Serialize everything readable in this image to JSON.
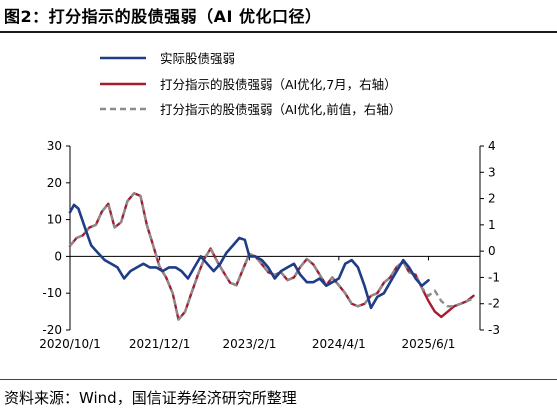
{
  "figure": {
    "title": "图2：打分指示的股债强弱（AI 优化口径）",
    "source": "资料来源：Wind，国信证券经济研究所整理"
  },
  "chart_data": {
    "type": "line",
    "x_tick_labels": [
      "2020/10/1",
      "2021/12/1",
      "2023/2/1",
      "2024/4/1",
      "2025/6/1"
    ],
    "x_range": [
      "2020-10-01",
      "2026-02-01"
    ],
    "left_axis": {
      "ticks": [
        30,
        20,
        10,
        0,
        -10,
        -20
      ],
      "range": [
        -20,
        30
      ]
    },
    "right_axis": {
      "ticks": [
        4,
        3,
        2,
        1,
        0,
        -1,
        -2,
        -3
      ],
      "range": [
        -3,
        4
      ]
    },
    "legend_position": "top",
    "colors": {
      "actual": "#1f3c88",
      "ai_july": "#a51c30",
      "ai_prev": "#8c8c8c"
    },
    "series": [
      {
        "name": "实际股债强弱",
        "axis": "left",
        "color": "#1f3c88",
        "points": [
          [
            "2020-10-01",
            12
          ],
          [
            "2020-10-20",
            14
          ],
          [
            "2020-11-10",
            13
          ],
          [
            "2020-12-10",
            8
          ],
          [
            "2021-01-10",
            3
          ],
          [
            "2021-02-10",
            1
          ],
          [
            "2021-03-15",
            -1
          ],
          [
            "2021-04-15",
            -2
          ],
          [
            "2021-05-15",
            -3
          ],
          [
            "2021-06-15",
            -6
          ],
          [
            "2021-07-15",
            -4
          ],
          [
            "2021-08-15",
            -3
          ],
          [
            "2021-09-15",
            -2
          ],
          [
            "2021-10-15",
            -3
          ],
          [
            "2021-11-15",
            -3
          ],
          [
            "2021-12-15",
            -4
          ],
          [
            "2022-01-15",
            -3
          ],
          [
            "2022-02-15",
            -3
          ],
          [
            "2022-03-15",
            -4
          ],
          [
            "2022-04-15",
            -6
          ],
          [
            "2022-05-15",
            -3
          ],
          [
            "2022-06-15",
            0
          ],
          [
            "2022-07-15",
            -2
          ],
          [
            "2022-08-15",
            -4
          ],
          [
            "2022-09-15",
            -2
          ],
          [
            "2022-10-15",
            1
          ],
          [
            "2022-11-15",
            3
          ],
          [
            "2022-12-15",
            5
          ],
          [
            "2023-01-10",
            4.5
          ],
          [
            "2023-02-01",
            0
          ],
          [
            "2023-03-01",
            0
          ],
          [
            "2023-04-01",
            -1
          ],
          [
            "2023-05-01",
            -3
          ],
          [
            "2023-06-01",
            -6
          ],
          [
            "2023-07-01",
            -4
          ],
          [
            "2023-08-01",
            -3
          ],
          [
            "2023-09-01",
            -2
          ],
          [
            "2023-10-01",
            -5
          ],
          [
            "2023-11-01",
            -7
          ],
          [
            "2023-12-01",
            -7
          ],
          [
            "2024-01-01",
            -6
          ],
          [
            "2024-02-01",
            -8
          ],
          [
            "2024-03-01",
            -7
          ],
          [
            "2024-04-01",
            -6
          ],
          [
            "2024-05-01",
            -2
          ],
          [
            "2024-06-01",
            -1
          ],
          [
            "2024-07-01",
            -3
          ],
          [
            "2024-08-01",
            -8
          ],
          [
            "2024-09-01",
            -14
          ],
          [
            "2024-10-01",
            -11
          ],
          [
            "2024-11-01",
            -10
          ],
          [
            "2024-12-01",
            -7
          ],
          [
            "2025-01-01",
            -4
          ],
          [
            "2025-02-01",
            -1
          ],
          [
            "2025-03-01",
            -3
          ],
          [
            "2025-04-01",
            -6
          ],
          [
            "2025-05-01",
            -8
          ],
          [
            "2025-06-01",
            -6.5
          ]
        ]
      },
      {
        "name": "打分指示的股债强弱（AI优化,7月，右轴）",
        "axis": "right",
        "color": "#a51c30",
        "points": [
          [
            "2020-10-01",
            0.2
          ],
          [
            "2020-11-01",
            0.5
          ],
          [
            "2020-12-01",
            0.6
          ],
          [
            "2021-01-01",
            0.9
          ],
          [
            "2021-02-01",
            1.0
          ],
          [
            "2021-03-01",
            1.5
          ],
          [
            "2021-04-01",
            1.8
          ],
          [
            "2021-05-01",
            0.9
          ],
          [
            "2021-06-01",
            1.1
          ],
          [
            "2021-07-01",
            1.9
          ],
          [
            "2021-08-01",
            2.2
          ],
          [
            "2021-09-01",
            2.1
          ],
          [
            "2021-10-01",
            1.0
          ],
          [
            "2021-11-01",
            0.2
          ],
          [
            "2021-12-01",
            -0.6
          ],
          [
            "2022-01-01",
            -1.0
          ],
          [
            "2022-02-01",
            -1.6
          ],
          [
            "2022-03-01",
            -2.6
          ],
          [
            "2022-04-01",
            -2.3
          ],
          [
            "2022-05-01",
            -1.6
          ],
          [
            "2022-06-01",
            -0.9
          ],
          [
            "2022-07-01",
            -0.3
          ],
          [
            "2022-08-01",
            0.1
          ],
          [
            "2022-09-01",
            -0.4
          ],
          [
            "2022-10-01",
            -0.8
          ],
          [
            "2022-11-01",
            -1.2
          ],
          [
            "2022-12-01",
            -1.3
          ],
          [
            "2023-01-01",
            -0.7
          ],
          [
            "2023-02-01",
            -0.1
          ],
          [
            "2023-03-01",
            -0.2
          ],
          [
            "2023-04-01",
            -0.5
          ],
          [
            "2023-05-01",
            -0.8
          ],
          [
            "2023-06-01",
            -0.9
          ],
          [
            "2023-07-01",
            -0.8
          ],
          [
            "2023-08-01",
            -1.1
          ],
          [
            "2023-09-01",
            -1.0
          ],
          [
            "2023-10-01",
            -0.6
          ],
          [
            "2023-11-01",
            -0.3
          ],
          [
            "2023-12-01",
            -0.5
          ],
          [
            "2024-01-01",
            -0.9
          ],
          [
            "2024-02-01",
            -1.3
          ],
          [
            "2024-03-01",
            -1.0
          ],
          [
            "2024-04-01",
            -1.3
          ],
          [
            "2024-05-01",
            -1.6
          ],
          [
            "2024-06-01",
            -2.0
          ],
          [
            "2024-07-01",
            -2.1
          ],
          [
            "2024-08-01",
            -2.0
          ],
          [
            "2024-09-01",
            -1.7
          ],
          [
            "2024-10-01",
            -1.6
          ],
          [
            "2024-11-01",
            -1.2
          ],
          [
            "2024-12-01",
            -1.0
          ],
          [
            "2025-01-01",
            -0.6
          ],
          [
            "2025-02-01",
            -0.4
          ],
          [
            "2025-03-01",
            -0.8
          ],
          [
            "2025-04-01",
            -0.9
          ],
          [
            "2025-05-01",
            -1.4
          ],
          [
            "2025-06-01",
            -1.9
          ],
          [
            "2025-07-01",
            -2.3
          ],
          [
            "2025-08-01",
            -2.5
          ],
          [
            "2025-09-01",
            -2.3
          ],
          [
            "2025-10-01",
            -2.1
          ],
          [
            "2025-11-01",
            -2.0
          ],
          [
            "2025-12-01",
            -1.9
          ],
          [
            "2026-01-01",
            -1.7
          ]
        ]
      },
      {
        "name": "打分指示的股债强弱（AI优化,前值，右轴）",
        "axis": "right",
        "color": "#8c8c8c",
        "dashed": true,
        "points": [
          [
            "2020-10-01",
            0.2
          ],
          [
            "2020-11-01",
            0.5
          ],
          [
            "2020-12-01",
            0.6
          ],
          [
            "2021-01-01",
            0.9
          ],
          [
            "2021-02-01",
            1.0
          ],
          [
            "2021-03-01",
            1.5
          ],
          [
            "2021-04-01",
            1.8
          ],
          [
            "2021-05-01",
            0.9
          ],
          [
            "2021-06-01",
            1.1
          ],
          [
            "2021-07-01",
            1.9
          ],
          [
            "2021-08-01",
            2.2
          ],
          [
            "2021-09-01",
            2.1
          ],
          [
            "2021-10-01",
            1.0
          ],
          [
            "2021-11-01",
            0.2
          ],
          [
            "2021-12-01",
            -0.6
          ],
          [
            "2022-01-01",
            -1.0
          ],
          [
            "2022-02-01",
            -1.6
          ],
          [
            "2022-03-01",
            -2.6
          ],
          [
            "2022-04-01",
            -2.3
          ],
          [
            "2022-05-01",
            -1.6
          ],
          [
            "2022-06-01",
            -0.9
          ],
          [
            "2022-07-01",
            -0.3
          ],
          [
            "2022-08-01",
            0.1
          ],
          [
            "2022-09-01",
            -0.4
          ],
          [
            "2022-10-01",
            -0.8
          ],
          [
            "2022-11-01",
            -1.2
          ],
          [
            "2022-12-01",
            -1.3
          ],
          [
            "2023-01-01",
            -0.7
          ],
          [
            "2023-02-01",
            -0.1
          ],
          [
            "2023-03-01",
            -0.2
          ],
          [
            "2023-04-01",
            -0.5
          ],
          [
            "2023-05-01",
            -0.8
          ],
          [
            "2023-06-01",
            -0.9
          ],
          [
            "2023-07-01",
            -0.8
          ],
          [
            "2023-08-01",
            -1.1
          ],
          [
            "2023-09-01",
            -1.0
          ],
          [
            "2023-10-01",
            -0.6
          ],
          [
            "2023-11-01",
            -0.3
          ],
          [
            "2023-12-01",
            -0.5
          ],
          [
            "2024-01-01",
            -0.9
          ],
          [
            "2024-02-01",
            -1.3
          ],
          [
            "2024-03-01",
            -1.0
          ],
          [
            "2024-04-01",
            -1.3
          ],
          [
            "2024-05-01",
            -1.6
          ],
          [
            "2024-06-01",
            -2.0
          ],
          [
            "2024-07-01",
            -2.1
          ],
          [
            "2024-08-01",
            -2.0
          ],
          [
            "2024-09-01",
            -1.7
          ],
          [
            "2024-10-01",
            -1.6
          ],
          [
            "2024-11-01",
            -1.2
          ],
          [
            "2024-12-01",
            -1.0
          ],
          [
            "2025-01-01",
            -0.6
          ],
          [
            "2025-02-01",
            -0.4
          ],
          [
            "2025-03-01",
            -0.8
          ],
          [
            "2025-04-01",
            -0.9
          ],
          [
            "2025-05-01",
            -1.4
          ],
          [
            "2025-06-01",
            -1.7
          ],
          [
            "2025-07-01",
            -1.5
          ],
          [
            "2025-08-01",
            -1.9
          ],
          [
            "2025-09-01",
            -2.1
          ],
          [
            "2025-10-01",
            -2.1
          ],
          [
            "2025-11-01",
            -2.0
          ],
          [
            "2025-12-01",
            -1.9
          ],
          [
            "2026-01-01",
            -1.8
          ]
        ]
      }
    ]
  }
}
